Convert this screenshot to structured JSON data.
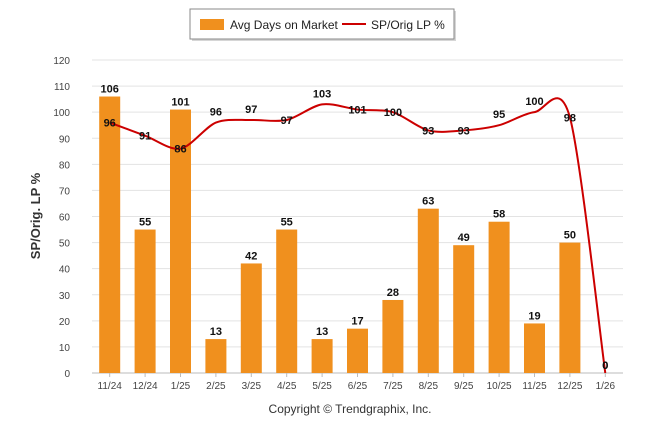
{
  "chart_data": {
    "type": "bar",
    "categories": [
      "11/24",
      "12/24",
      "1/25",
      "2/25",
      "3/25",
      "4/25",
      "5/25",
      "6/25",
      "7/25",
      "8/25",
      "9/25",
      "10/25",
      "11/25",
      "12/25",
      "1/26"
    ],
    "series": [
      {
        "name": "Avg Days on Market",
        "type": "bar",
        "color": "#f0901e",
        "values": [
          106,
          55,
          101,
          13,
          42,
          55,
          13,
          17,
          28,
          63,
          49,
          58,
          19,
          50,
          0
        ]
      },
      {
        "name": "SP/Orig LP %",
        "type": "line",
        "color": "#cc0000",
        "values": [
          96,
          91,
          86,
          96,
          97,
          97,
          103,
          101,
          100,
          93,
          93,
          95,
          100,
          98,
          0
        ]
      }
    ],
    "ylabel": "SP/Orig. LP %",
    "ylim": [
      0,
      120
    ],
    "yticks": [
      0,
      10,
      20,
      30,
      40,
      50,
      60,
      70,
      80,
      90,
      100,
      110,
      120
    ],
    "grid": true,
    "legend": "top-center",
    "copyright": "Copyright © Trendgraphix, Inc."
  }
}
